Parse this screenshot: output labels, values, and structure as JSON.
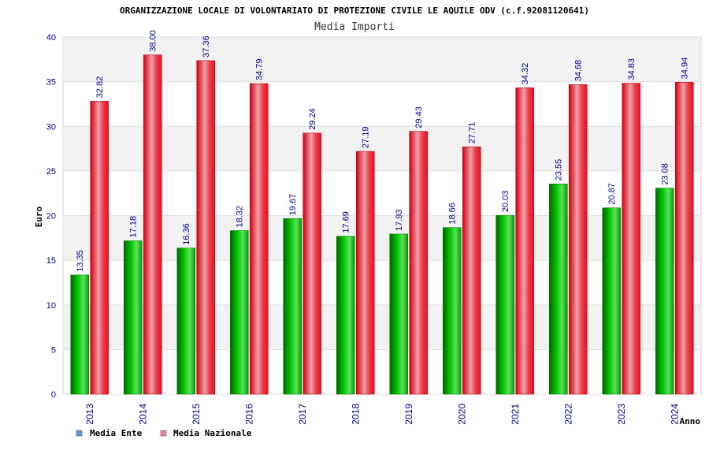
{
  "chart_data": {
    "type": "bar",
    "title": "ORGANIZZAZIONE LOCALE DI VOLONTARIATO DI PROTEZIONE CIVILE LE AQUILE ODV (c.f.92081120641)",
    "subtitle": "Media Importi",
    "xlabel": "Anno",
    "ylabel": "Euro",
    "ylim": [
      0,
      40
    ],
    "yticks": [
      0,
      5,
      10,
      15,
      20,
      25,
      30,
      35,
      40
    ],
    "grid": true,
    "legend_position": "bottom-left",
    "categories": [
      "2013",
      "2014",
      "2015",
      "2016",
      "2017",
      "2018",
      "2019",
      "2020",
      "2021",
      "2022",
      "2023",
      "2024"
    ],
    "series": [
      {
        "name": "Media Ente",
        "color": "#00a000",
        "legend_color": "#5b9bd5",
        "values": [
          13.35,
          17.18,
          16.36,
          18.32,
          19.67,
          17.69,
          17.93,
          18.66,
          20.03,
          23.55,
          20.87,
          23.08
        ],
        "labels": [
          "13.35",
          "17.18",
          "16.36",
          "18.32",
          "19.67",
          "17.69",
          "17.93",
          "18.66",
          "20.03",
          "23.55",
          "20.87",
          "23.08"
        ]
      },
      {
        "name": "Media Nazionale",
        "color": "#e8101e",
        "legend_color": "#e87fb0",
        "values": [
          32.82,
          38.0,
          37.36,
          34.79,
          29.24,
          27.19,
          29.43,
          27.71,
          34.32,
          34.68,
          34.83,
          34.94
        ],
        "labels": [
          "32.82",
          "38.00",
          "37.36",
          "34.79",
          "29.24",
          "27.19",
          "29.43",
          "27.71",
          "34.32",
          "34.68",
          "34.83",
          "34.94"
        ]
      }
    ]
  }
}
